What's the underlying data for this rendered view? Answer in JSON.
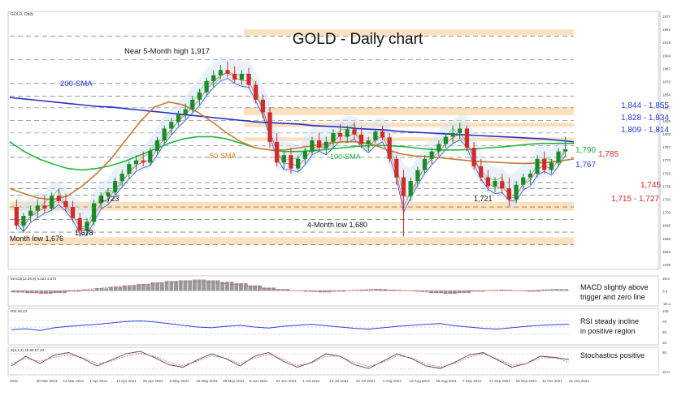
{
  "header": {
    "symbol": "GOLD, Daily",
    "title": "GOLD - Daily chart"
  },
  "chart_data": {
    "type": "candlestick",
    "title": "GOLD - Daily chart",
    "ylim": [
      1640,
      1980
    ],
    "price_axis_ticks": [
      "1977",
      "1951",
      "1919",
      "1904",
      "1887",
      "1870",
      "1854",
      "1837",
      "1820",
      "1803",
      "1787",
      "1770",
      "1753",
      "1736",
      "1720",
      "1703",
      "1686",
      "1669",
      "1653",
      "1636"
    ],
    "date_ticks": [
      "2021",
      "30 Mar 2021",
      "12 Mar 2021",
      "1 Apr 2021",
      "14 Apr 2021",
      "26 Apr 2021",
      "6 May 2021",
      "19 May 2021",
      "28 May 2021",
      "9 Jun 2021",
      "21 Jun 2021",
      "1 Jul 2021",
      "13 Jul 2021",
      "22 Jul 2021",
      "4 Aug 2021",
      "16 Aug 2021",
      "26 Aug 2021",
      "7 Sep 2021",
      "17 Sep 2021",
      "29 Sep 2021",
      "11 Oct 2021",
      "21 Oct 2021"
    ],
    "candles": [
      [
        1720,
        1730,
        1690,
        1695
      ],
      [
        1695,
        1712,
        1685,
        1708
      ],
      [
        1708,
        1722,
        1700,
        1715
      ],
      [
        1715,
        1730,
        1705,
        1722
      ],
      [
        1722,
        1735,
        1712,
        1718
      ],
      [
        1718,
        1740,
        1715,
        1735
      ],
      [
        1735,
        1745,
        1725,
        1728
      ],
      [
        1728,
        1738,
        1715,
        1720
      ],
      [
        1720,
        1728,
        1700,
        1705
      ],
      [
        1705,
        1712,
        1680,
        1688
      ],
      [
        1688,
        1705,
        1682,
        1700
      ],
      [
        1700,
        1730,
        1695,
        1725
      ],
      [
        1725,
        1740,
        1718,
        1735
      ],
      [
        1735,
        1745,
        1725,
        1740
      ],
      [
        1740,
        1760,
        1735,
        1755
      ],
      [
        1755,
        1770,
        1748,
        1765
      ],
      [
        1765,
        1782,
        1758,
        1778
      ],
      [
        1778,
        1790,
        1770,
        1783
      ],
      [
        1783,
        1795,
        1775,
        1780
      ],
      [
        1780,
        1800,
        1776,
        1796
      ],
      [
        1796,
        1815,
        1790,
        1810
      ],
      [
        1810,
        1830,
        1805,
        1826
      ],
      [
        1826,
        1840,
        1818,
        1835
      ],
      [
        1835,
        1850,
        1830,
        1845
      ],
      [
        1845,
        1860,
        1838,
        1852
      ],
      [
        1852,
        1870,
        1848,
        1865
      ],
      [
        1865,
        1880,
        1858,
        1875
      ],
      [
        1875,
        1895,
        1870,
        1890
      ],
      [
        1890,
        1905,
        1882,
        1898
      ],
      [
        1898,
        1912,
        1892,
        1905
      ],
      [
        1905,
        1917,
        1895,
        1900
      ],
      [
        1900,
        1910,
        1888,
        1892
      ],
      [
        1892,
        1905,
        1885,
        1900
      ],
      [
        1900,
        1908,
        1880,
        1885
      ],
      [
        1885,
        1890,
        1860,
        1865
      ],
      [
        1865,
        1872,
        1840,
        1848
      ],
      [
        1848,
        1855,
        1800,
        1808
      ],
      [
        1808,
        1820,
        1775,
        1780
      ],
      [
        1780,
        1795,
        1770,
        1790
      ],
      [
        1790,
        1800,
        1765,
        1772
      ],
      [
        1772,
        1790,
        1768,
        1785
      ],
      [
        1785,
        1800,
        1778,
        1795
      ],
      [
        1795,
        1815,
        1790,
        1810
      ],
      [
        1810,
        1820,
        1795,
        1800
      ],
      [
        1800,
        1815,
        1790,
        1808
      ],
      [
        1808,
        1825,
        1800,
        1820
      ],
      [
        1820,
        1832,
        1810,
        1815
      ],
      [
        1815,
        1830,
        1808,
        1825
      ],
      [
        1825,
        1835,
        1812,
        1818
      ],
      [
        1818,
        1828,
        1800,
        1805
      ],
      [
        1805,
        1815,
        1795,
        1810
      ],
      [
        1810,
        1825,
        1805,
        1822
      ],
      [
        1822,
        1830,
        1810,
        1814
      ],
      [
        1814,
        1820,
        1780,
        1785
      ],
      [
        1785,
        1790,
        1750,
        1760
      ],
      [
        1760,
        1770,
        1680,
        1735
      ],
      [
        1735,
        1760,
        1728,
        1755
      ],
      [
        1755,
        1775,
        1748,
        1770
      ],
      [
        1770,
        1790,
        1765,
        1785
      ],
      [
        1785,
        1800,
        1778,
        1795
      ],
      [
        1795,
        1810,
        1788,
        1805
      ],
      [
        1805,
        1820,
        1800,
        1815
      ],
      [
        1815,
        1830,
        1805,
        1820
      ],
      [
        1820,
        1834,
        1812,
        1826
      ],
      [
        1826,
        1830,
        1795,
        1800
      ],
      [
        1800,
        1808,
        1770,
        1775
      ],
      [
        1775,
        1785,
        1755,
        1760
      ],
      [
        1760,
        1770,
        1742,
        1748
      ],
      [
        1748,
        1760,
        1740,
        1755
      ],
      [
        1755,
        1765,
        1738,
        1745
      ],
      [
        1745,
        1760,
        1721,
        1730
      ],
      [
        1730,
        1755,
        1725,
        1750
      ],
      [
        1750,
        1765,
        1745,
        1760
      ],
      [
        1760,
        1770,
        1750,
        1765
      ],
      [
        1765,
        1790,
        1760,
        1785
      ],
      [
        1785,
        1795,
        1765,
        1770
      ],
      [
        1770,
        1785,
        1765,
        1780
      ],
      [
        1780,
        1800,
        1775,
        1795
      ],
      [
        1795,
        1815,
        1788,
        1798
      ]
    ],
    "levels": [
      {
        "label": "1,844 - 1,855",
        "low": 1844,
        "high": 1855,
        "kind": "zone"
      },
      {
        "label": "1,828 - 1,834",
        "low": 1828,
        "high": 1834,
        "kind": "zone"
      },
      {
        "label": "1,809 - 1,814",
        "low": 1809,
        "high": 1814,
        "kind": "zone"
      },
      {
        "label": "1,715 - 1,727",
        "low": 1715,
        "high": 1727,
        "kind": "zone"
      },
      {
        "label": "",
        "low": 1669,
        "high": 1679,
        "kind": "zone"
      },
      {
        "label": "",
        "low": 1952,
        "high": 1960,
        "kind": "zone"
      },
      {
        "label": "1,790",
        "value": 1790,
        "kind": "line"
      },
      {
        "label": "1,785",
        "value": 1785,
        "kind": "line"
      },
      {
        "label": "1,767",
        "value": 1767,
        "kind": "line"
      },
      {
        "label": "1,745",
        "value": 1745,
        "kind": "line"
      }
    ],
    "annotations": {
      "high": "Near 5-Month high 1,917",
      "sma200": "200-SMA",
      "sma50": "50-SMA",
      "sma100": "100-SMA",
      "low1723": "1,723",
      "low1721": "1,721",
      "low4m": "4-Month low 1,680",
      "low1678": "1,678",
      "low1676": "Month low 1,676"
    },
    "lines": {
      "sma200": [
        1868,
        1866,
        1864,
        1862,
        1860,
        1858,
        1856,
        1855,
        1853,
        1851,
        1849,
        1847,
        1845,
        1843,
        1841,
        1839,
        1837,
        1835,
        1834,
        1833,
        1832,
        1830,
        1829,
        1828,
        1826,
        1825,
        1824,
        1822,
        1821,
        1820,
        1819,
        1818,
        1817,
        1816,
        1815,
        1814,
        1813,
        1812,
        1810,
        1808
      ],
      "sma100": [
        1808,
        1795,
        1785,
        1778,
        1772,
        1770,
        1772,
        1776,
        1782,
        1790,
        1798,
        1806,
        1812,
        1815,
        1815,
        1812,
        1806,
        1800,
        1797,
        1795,
        1795,
        1796,
        1798,
        1800,
        1802,
        1803,
        1803,
        1802,
        1800,
        1798,
        1797,
        1797,
        1798,
        1800,
        1801,
        1803,
        1805,
        1806,
        1806,
        1806
      ],
      "sma50": [
        1745,
        1738,
        1732,
        1730,
        1735,
        1748,
        1765,
        1785,
        1810,
        1835,
        1855,
        1862,
        1858,
        1848,
        1835,
        1820,
        1808,
        1800,
        1797,
        1797,
        1800,
        1803,
        1806,
        1808,
        1808,
        1805,
        1798,
        1792,
        1789,
        1788,
        1786,
        1784,
        1782,
        1781,
        1780,
        1779,
        1779,
        1780,
        1782,
        1785
      ]
    },
    "indicators": [
      {
        "name": "MACD",
        "caption": "MACD slightly above trigger and zero line",
        "header": "MACD(12,26,9) 4.423  4.872"
      },
      {
        "name": "RSI",
        "caption": "RSI steady incline in positive region",
        "header": "RSI 58.23"
      },
      {
        "name": "Stochastics",
        "caption": "Stochastics positive",
        "header": "S(5,3,3) 45.89 57.23"
      }
    ],
    "macd": [
      -2,
      -3,
      -4,
      -3,
      -1,
      1,
      3,
      5,
      7,
      9,
      11,
      13,
      14,
      15,
      14,
      12,
      10,
      7,
      4,
      2,
      0,
      -1,
      -2,
      -1,
      0,
      1,
      2,
      1,
      0,
      -1,
      -3,
      -4,
      -3,
      -1,
      0,
      1,
      0,
      -1,
      1,
      2
    ],
    "rsi": [
      42,
      45,
      40,
      48,
      52,
      55,
      58,
      62,
      66,
      68,
      65,
      60,
      55,
      50,
      48,
      52,
      55,
      50,
      47,
      52,
      55,
      58,
      54,
      50,
      46,
      44,
      48,
      52,
      55,
      58,
      60,
      54,
      50,
      46,
      44,
      48,
      52,
      55,
      57,
      58
    ],
    "stoch": [
      30,
      70,
      40,
      75,
      85,
      60,
      30,
      55,
      80,
      90,
      65,
      35,
      25,
      55,
      80,
      60,
      30,
      70,
      85,
      50,
      25,
      45,
      80,
      70,
      35,
      20,
      50,
      80,
      60,
      30,
      20,
      45,
      75,
      85,
      55,
      25,
      40,
      70,
      65,
      57
    ],
    "stoch_signal": [
      40,
      60,
      50,
      65,
      75,
      65,
      40,
      50,
      70,
      82,
      70,
      45,
      32,
      50,
      72,
      62,
      40,
      62,
      78,
      58,
      32,
      42,
      70,
      70,
      45,
      28,
      45,
      72,
      64,
      38,
      26,
      40,
      66,
      80,
      60,
      35,
      40,
      62,
      64,
      46
    ],
    "stoch_ticks": [
      "80",
      "20.0"
    ],
    "rsi_ticks": [
      "100",
      "70",
      "50",
      "30"
    ],
    "macd_ticks": [
      "39.3",
      "0.0",
      "-20.1"
    ]
  }
}
